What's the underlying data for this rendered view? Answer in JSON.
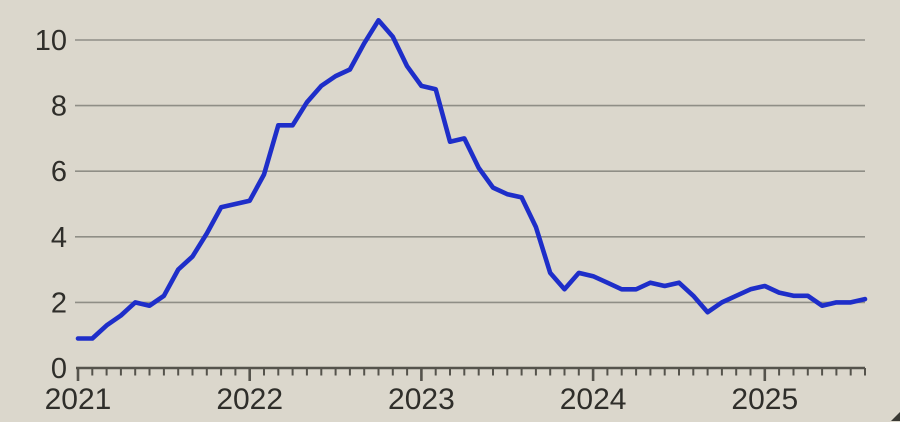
{
  "chart_data": {
    "type": "line",
    "title": "",
    "xlabel": "",
    "ylabel": "",
    "x": [
      "2021-01",
      "2021-02",
      "2021-03",
      "2021-04",
      "2021-05",
      "2021-06",
      "2021-07",
      "2021-08",
      "2021-09",
      "2021-10",
      "2021-11",
      "2021-12",
      "2022-01",
      "2022-02",
      "2022-03",
      "2022-04",
      "2022-05",
      "2022-06",
      "2022-07",
      "2022-08",
      "2022-09",
      "2022-10",
      "2022-11",
      "2022-12",
      "2023-01",
      "2023-02",
      "2023-03",
      "2023-04",
      "2023-05",
      "2023-06",
      "2023-07",
      "2023-08",
      "2023-09",
      "2023-10",
      "2023-11",
      "2023-12",
      "2024-01",
      "2024-02",
      "2024-03",
      "2024-04",
      "2024-05",
      "2024-06",
      "2024-07",
      "2024-08",
      "2024-09",
      "2024-10",
      "2024-11",
      "2024-12",
      "2025-01",
      "2025-02",
      "2025-03",
      "2025-04",
      "2025-05",
      "2025-06",
      "2025-07",
      "2025-08"
    ],
    "values": [
      0.9,
      0.9,
      1.3,
      1.6,
      2.0,
      1.9,
      2.2,
      3.0,
      3.4,
      4.1,
      4.9,
      5.0,
      5.1,
      5.9,
      7.4,
      7.4,
      8.1,
      8.6,
      8.9,
      9.1,
      9.9,
      10.6,
      10.1,
      9.2,
      8.6,
      8.5,
      6.9,
      7.0,
      6.1,
      5.5,
      5.3,
      5.2,
      4.3,
      2.9,
      2.4,
      2.9,
      2.8,
      2.6,
      2.4,
      2.4,
      2.6,
      2.5,
      2.6,
      2.2,
      1.7,
      2.0,
      2.2,
      2.4,
      2.5,
      2.3,
      2.2,
      2.2,
      1.9,
      2.0,
      2.0,
      2.1
    ],
    "y_ticks": [
      0,
      2,
      4,
      6,
      8,
      10
    ],
    "ylim": [
      0,
      11
    ],
    "x_tick_labels": [
      "2021",
      "2022",
      "2023",
      "2024",
      "2025"
    ],
    "x_tick_month_indices": [
      0,
      12,
      24,
      36,
      48
    ],
    "grid": true,
    "legend": "none",
    "minor_ticks": "monthly"
  },
  "style": {
    "background_color": "#dbd7cc",
    "line_color": "#1e2ec9",
    "gridline_color": "#8f8e86",
    "axis_color": "#55534c",
    "text_color": "#2f2e2a",
    "corner_mark_color": "#3a3a34"
  }
}
